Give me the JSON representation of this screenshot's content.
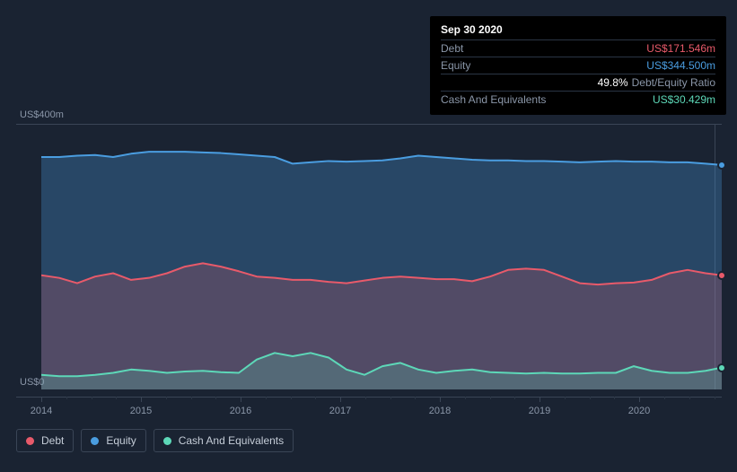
{
  "background_color": "#1a2332",
  "tooltip": {
    "date": "Sep 30 2020",
    "rows": [
      {
        "label": "Debt",
        "value": "US$171.546m",
        "value_class": "tooltip-value-debt"
      },
      {
        "label": "Equity",
        "value": "US$344.500m",
        "value_class": "tooltip-value-equity"
      },
      {
        "label": "",
        "ratio_pct": "49.8%",
        "ratio_label": "Debt/Equity Ratio"
      },
      {
        "label": "Cash And Equivalents",
        "value": "US$30.429m",
        "value_class": "tooltip-value-cash"
      }
    ]
  },
  "chart": {
    "type": "area",
    "y_axis": {
      "min": 0,
      "max": 400,
      "top_label": "US$400m",
      "bottom_label": "US$0"
    },
    "x_axis": {
      "years": [
        "2014",
        "2015",
        "2016",
        "2017",
        "2018",
        "2019",
        "2020"
      ],
      "year_positions": [
        0,
        111,
        222,
        333,
        444,
        555,
        666
      ],
      "minor_positions": [
        28,
        56,
        83,
        139,
        167,
        194,
        250,
        278,
        305,
        361,
        389,
        416,
        472,
        500,
        527,
        583,
        611,
        638,
        694,
        722,
        750
      ]
    },
    "guide_x": 750,
    "series": [
      {
        "name": "Equity",
        "color": "#4a9de0",
        "fill": "rgba(74,157,224,0.30)",
        "points": [
          [
            0,
            350
          ],
          [
            20,
            350
          ],
          [
            40,
            352
          ],
          [
            60,
            353
          ],
          [
            80,
            350
          ],
          [
            100,
            355
          ],
          [
            120,
            358
          ],
          [
            140,
            358
          ],
          [
            160,
            358
          ],
          [
            180,
            357
          ],
          [
            200,
            356
          ],
          [
            220,
            354
          ],
          [
            240,
            352
          ],
          [
            260,
            350
          ],
          [
            280,
            340
          ],
          [
            300,
            342
          ],
          [
            320,
            344
          ],
          [
            340,
            343
          ],
          [
            360,
            344
          ],
          [
            380,
            345
          ],
          [
            400,
            348
          ],
          [
            420,
            352
          ],
          [
            440,
            350
          ],
          [
            460,
            348
          ],
          [
            480,
            346
          ],
          [
            500,
            345
          ],
          [
            520,
            345
          ],
          [
            540,
            344
          ],
          [
            560,
            344
          ],
          [
            580,
            343
          ],
          [
            600,
            342
          ],
          [
            620,
            343
          ],
          [
            640,
            344
          ],
          [
            660,
            343
          ],
          [
            680,
            343
          ],
          [
            700,
            342
          ],
          [
            720,
            342
          ],
          [
            740,
            340
          ],
          [
            758,
            338
          ]
        ],
        "end_dot": {
          "x": 758,
          "y": 338
        }
      },
      {
        "name": "Debt",
        "color": "#e85a6a",
        "fill": "rgba(232,90,106,0.22)",
        "points": [
          [
            0,
            172
          ],
          [
            20,
            168
          ],
          [
            40,
            160
          ],
          [
            60,
            170
          ],
          [
            80,
            175
          ],
          [
            100,
            165
          ],
          [
            120,
            168
          ],
          [
            140,
            175
          ],
          [
            160,
            185
          ],
          [
            180,
            190
          ],
          [
            200,
            185
          ],
          [
            220,
            178
          ],
          [
            240,
            170
          ],
          [
            260,
            168
          ],
          [
            280,
            165
          ],
          [
            300,
            165
          ],
          [
            320,
            162
          ],
          [
            340,
            160
          ],
          [
            360,
            164
          ],
          [
            380,
            168
          ],
          [
            400,
            170
          ],
          [
            420,
            168
          ],
          [
            440,
            166
          ],
          [
            460,
            166
          ],
          [
            480,
            163
          ],
          [
            500,
            170
          ],
          [
            520,
            180
          ],
          [
            540,
            182
          ],
          [
            560,
            180
          ],
          [
            580,
            170
          ],
          [
            600,
            160
          ],
          [
            620,
            158
          ],
          [
            640,
            160
          ],
          [
            660,
            161
          ],
          [
            680,
            165
          ],
          [
            700,
            175
          ],
          [
            720,
            180
          ],
          [
            740,
            175
          ],
          [
            758,
            172
          ]
        ],
        "end_dot": {
          "x": 758,
          "y": 172
        }
      },
      {
        "name": "Cash And Equivalents",
        "color": "#5dd8b8",
        "fill": "rgba(93,216,184,0.22)",
        "points": [
          [
            0,
            22
          ],
          [
            20,
            20
          ],
          [
            40,
            20
          ],
          [
            60,
            22
          ],
          [
            80,
            25
          ],
          [
            100,
            30
          ],
          [
            120,
            28
          ],
          [
            140,
            25
          ],
          [
            160,
            27
          ],
          [
            180,
            28
          ],
          [
            200,
            26
          ],
          [
            220,
            25
          ],
          [
            240,
            45
          ],
          [
            260,
            55
          ],
          [
            280,
            50
          ],
          [
            300,
            55
          ],
          [
            320,
            48
          ],
          [
            340,
            30
          ],
          [
            360,
            22
          ],
          [
            380,
            35
          ],
          [
            400,
            40
          ],
          [
            420,
            30
          ],
          [
            440,
            25
          ],
          [
            460,
            28
          ],
          [
            480,
            30
          ],
          [
            500,
            26
          ],
          [
            520,
            25
          ],
          [
            540,
            24
          ],
          [
            560,
            25
          ],
          [
            580,
            24
          ],
          [
            600,
            24
          ],
          [
            620,
            25
          ],
          [
            640,
            25
          ],
          [
            660,
            35
          ],
          [
            680,
            28
          ],
          [
            700,
            25
          ],
          [
            720,
            25
          ],
          [
            740,
            28
          ],
          [
            758,
            33
          ]
        ],
        "end_dot": {
          "x": 758,
          "y": 33
        }
      }
    ]
  },
  "legend": {
    "items": [
      {
        "label": "Debt",
        "color": "#e85a6a"
      },
      {
        "label": "Equity",
        "color": "#4a9de0"
      },
      {
        "label": "Cash And Equivalents",
        "color": "#5dd8b8"
      }
    ]
  },
  "styling": {
    "axis_label_color": "#8a96a8",
    "axis_label_fontsize": 11,
    "grid_color": "#3a4556",
    "legend_border": "#3a4556",
    "legend_text_color": "#c5cdd8",
    "legend_fontsize": 12,
    "tooltip_bg": "#000000"
  }
}
